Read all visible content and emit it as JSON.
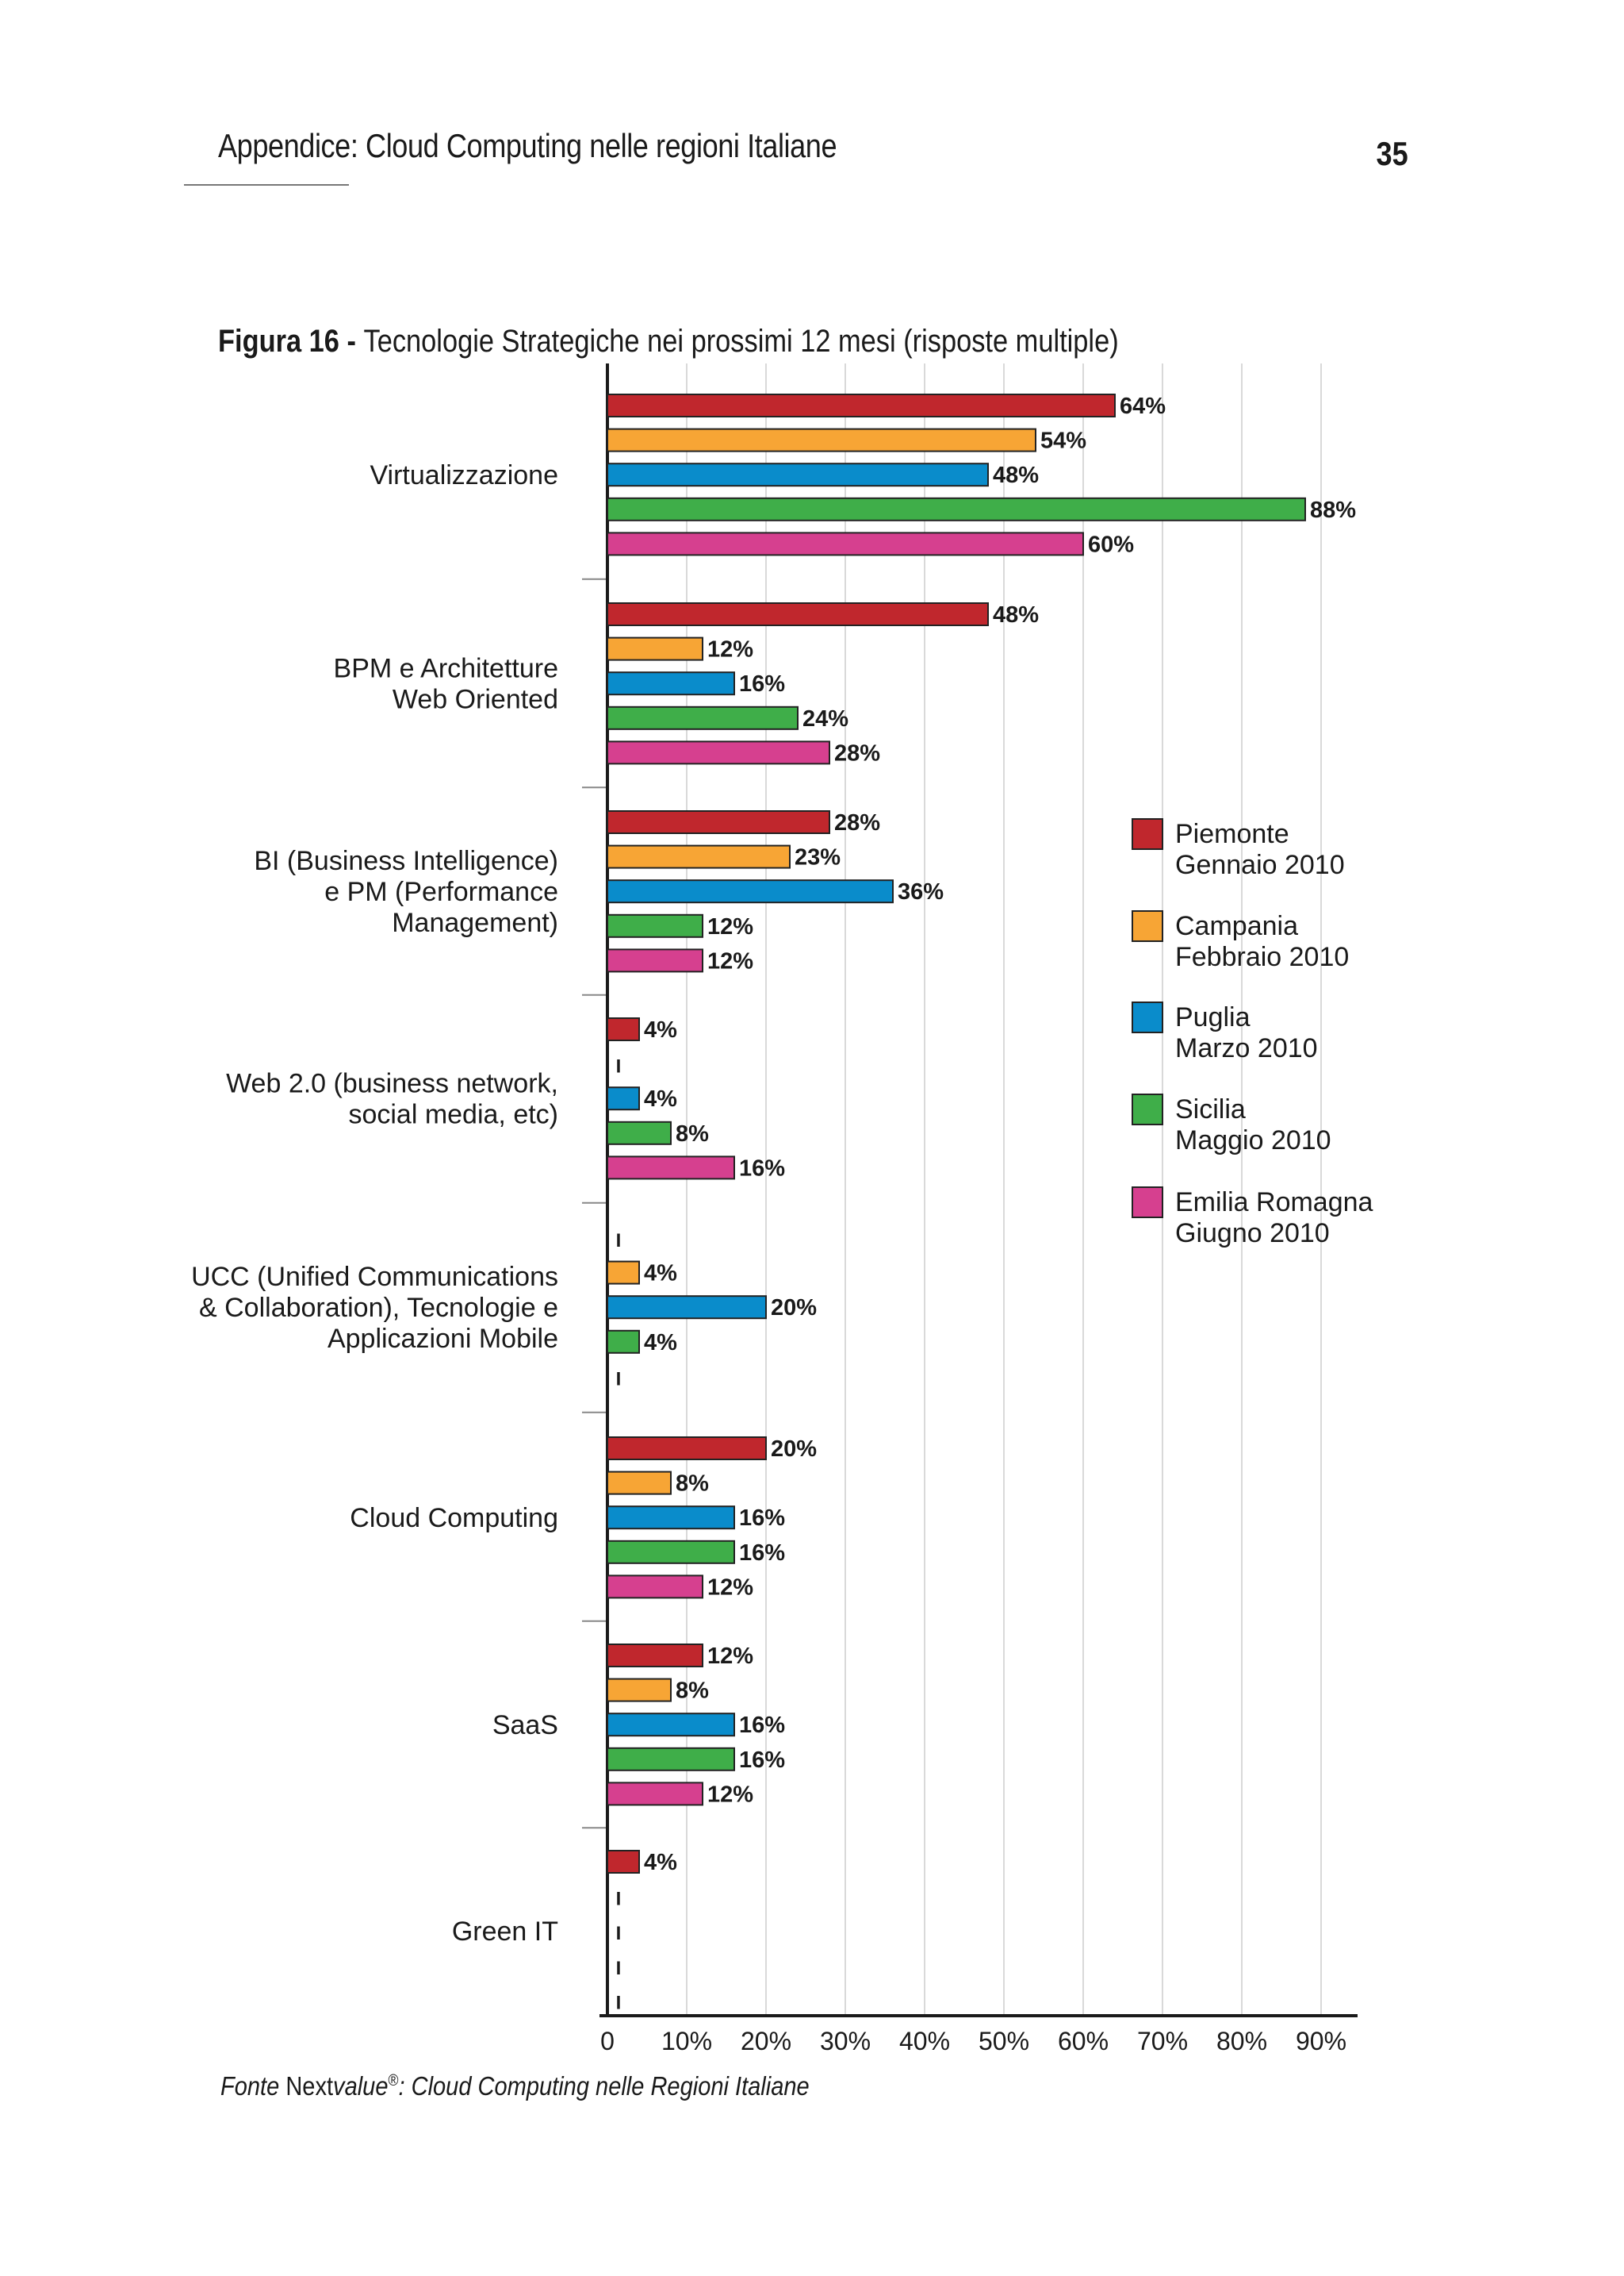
{
  "header": {
    "title": "Appendice: Cloud Computing nelle regioni Italiane",
    "page_number": "35"
  },
  "figure": {
    "label": "Figura 16",
    "separator": " - ",
    "caption": "Tecnologie Strategiche nei prossimi 12 mesi (risposte multiple)"
  },
  "source": {
    "prefix": "Fonte ",
    "brand_a": "Next",
    "brand_b": "value",
    "registered": "®",
    "rest": ": Cloud Computing nelle Regioni Italiane"
  },
  "colors": {
    "Piemonte": "#c0272d",
    "Campania": "#f7a535",
    "Puglia": "#0a8ccb",
    "Sicilia": "#3fae49",
    "Emilia Romagna": "#d6408f",
    "axis": "#1a1a1a",
    "grid": "#d9d9d9"
  },
  "chart_data": {
    "type": "bar",
    "orientation": "horizontal",
    "grid": true,
    "legend_position": "right",
    "xlim": [
      0,
      90
    ],
    "x_ticks": [
      "0",
      "10%",
      "20%",
      "30%",
      "40%",
      "50%",
      "60%",
      "70%",
      "80%",
      "90%"
    ],
    "categories": [
      [
        "Virtualizzazione"
      ],
      [
        "BPM e Architetture",
        "Web Oriented"
      ],
      [
        "BI (Business Intelligence)",
        "e PM (Performance",
        "Management)"
      ],
      [
        "Web 2.0 (business network,",
        "social media, etc)"
      ],
      [
        "UCC (Unified Communications",
        "& Collaboration), Tecnologie e",
        "Applicazioni Mobile"
      ],
      [
        "Cloud Computing"
      ],
      [
        "SaaS"
      ],
      [
        "Green IT"
      ]
    ],
    "series": [
      {
        "name": "Piemonte",
        "period": "Gennaio 2010",
        "values": [
          64,
          48,
          28,
          4,
          0,
          20,
          12,
          4
        ]
      },
      {
        "name": "Campania",
        "period": "Febbraio 2010",
        "values": [
          54,
          12,
          23,
          0,
          4,
          8,
          8,
          0
        ]
      },
      {
        "name": "Puglia",
        "period": "Marzo 2010",
        "values": [
          48,
          16,
          36,
          4,
          20,
          16,
          16,
          0
        ]
      },
      {
        "name": "Sicilia",
        "period": "Maggio 2010",
        "values": [
          88,
          24,
          12,
          8,
          4,
          16,
          16,
          0
        ]
      },
      {
        "name": "Emilia Romagna",
        "period": "Giugno 2010",
        "values": [
          60,
          28,
          12,
          16,
          0,
          12,
          12,
          0
        ]
      }
    ],
    "zero_marker": "I",
    "value_suffix": "%"
  }
}
